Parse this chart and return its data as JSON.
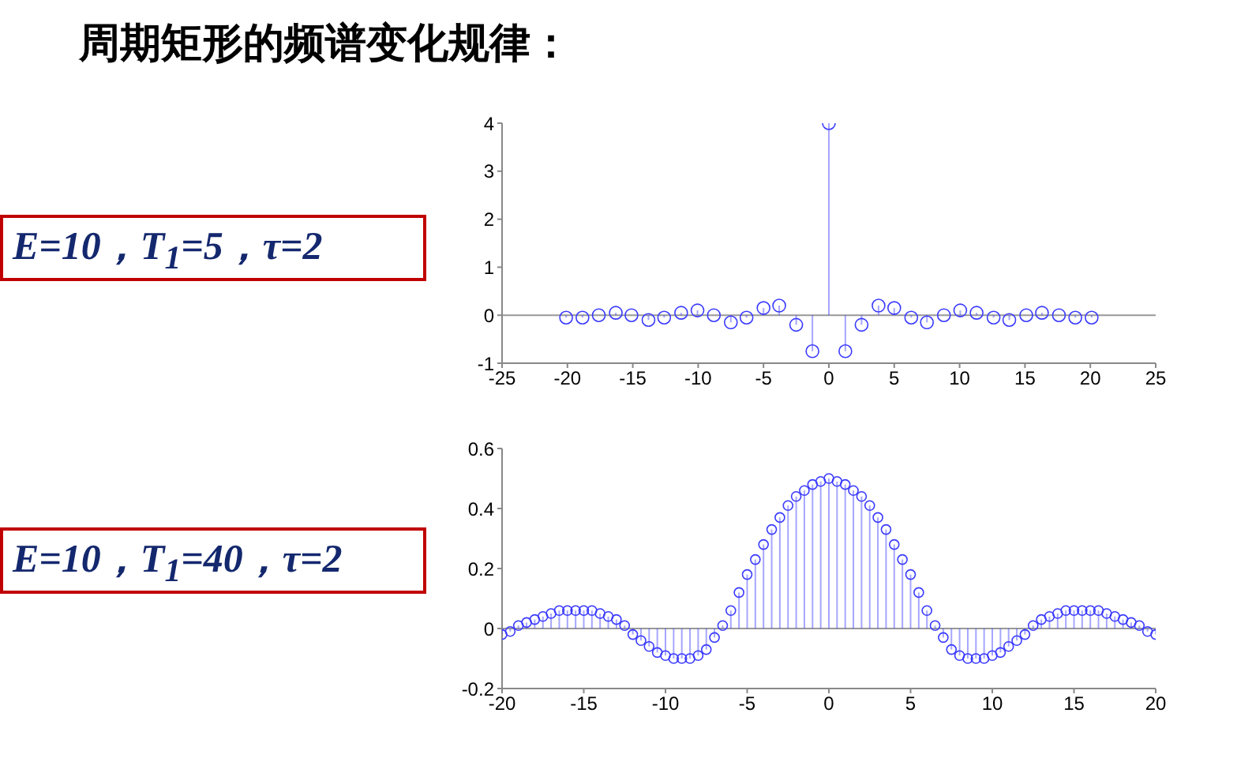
{
  "chart_data": [
    {
      "type": "lollipop",
      "title": "周期矩形的频谱变化规律：",
      "annotations": [
        "E=10，T$_{1}$=5，τ=2"
      ],
      "color": "#3a3aff",
      "marker": "circle",
      "ref_lines": [
        {
          "axis": "y",
          "value": 0,
          "color": "#999999"
        }
      ],
      "x": [
        -20.1,
        -18.85,
        -17.6,
        -16.3,
        -15.1,
        -13.8,
        -12.6,
        -11.3,
        -10.05,
        -8.8,
        -7.5,
        -6.3,
        -5.0,
        -3.8,
        -2.5,
        -1.26,
        0,
        1.26,
        2.5,
        3.8,
        5.0,
        6.3,
        7.5,
        8.8,
        10.05,
        11.3,
        12.6,
        13.8,
        15.1,
        16.3,
        17.6,
        18.85,
        20.1
      ],
      "values": [
        -0.05,
        -0.05,
        0,
        0.05,
        0,
        -0.1,
        -0.05,
        0.05,
        0.1,
        0,
        -0.15,
        -0.05,
        0.15,
        0.2,
        -0.2,
        -0.75,
        4,
        -0.75,
        -0.2,
        0.2,
        0.15,
        -0.05,
        -0.15,
        0,
        0.1,
        0.05,
        -0.05,
        -0.1,
        0,
        0.05,
        0,
        -0.05,
        -0.05
      ],
      "xlim": [
        -25,
        25
      ],
      "xticks": [
        -25,
        -20,
        -15,
        -10,
        -5,
        0,
        5,
        10,
        15,
        20,
        25
      ],
      "ylim": [
        -1,
        4
      ],
      "yticks": [
        -1,
        0,
        1,
        2,
        3,
        4
      ]
    },
    {
      "type": "lollipop",
      "annotations": [
        "E=10，T$_{1}$=40，τ=2"
      ],
      "color": "#3a3aff",
      "marker": "circle",
      "ref_lines": [
        {
          "axis": "y",
          "value": 0,
          "color": "#999999"
        }
      ],
      "x": [
        -20,
        -19.5,
        -19,
        -18.5,
        -18,
        -17.5,
        -17,
        -16.5,
        -16,
        -15.5,
        -15,
        -14.5,
        -14,
        -13.5,
        -13,
        -12.5,
        -12,
        -11.5,
        -11,
        -10.5,
        -10,
        -9.5,
        -9,
        -8.5,
        -8,
        -7.5,
        -7,
        -6.5,
        -6,
        -5.5,
        -5,
        -4.5,
        -4,
        -3.5,
        -3,
        -2.5,
        -2,
        -1.5,
        -1,
        -0.5,
        0,
        0.5,
        1,
        1.5,
        2,
        2.5,
        3,
        3.5,
        4,
        4.5,
        5,
        5.5,
        6,
        6.5,
        7,
        7.5,
        8,
        8.5,
        9,
        9.5,
        10,
        10.5,
        11,
        11.5,
        12,
        12.5,
        13,
        13.5,
        14,
        14.5,
        15,
        15.5,
        16,
        16.5,
        17,
        17.5,
        18,
        18.5,
        19,
        19.5,
        20
      ],
      "values": [
        -0.02,
        -0.01,
        0.01,
        0.02,
        0.03,
        0.04,
        0.05,
        0.06,
        0.06,
        0.06,
        0.06,
        0.06,
        0.05,
        0.04,
        0.03,
        0.01,
        -0.02,
        -0.04,
        -0.06,
        -0.08,
        -0.09,
        -0.1,
        -0.1,
        -0.1,
        -0.09,
        -0.07,
        -0.03,
        0.01,
        0.06,
        0.12,
        0.18,
        0.23,
        0.28,
        0.33,
        0.37,
        0.41,
        0.44,
        0.46,
        0.48,
        0.49,
        0.5,
        0.49,
        0.48,
        0.46,
        0.44,
        0.41,
        0.37,
        0.33,
        0.28,
        0.23,
        0.18,
        0.12,
        0.06,
        0.01,
        -0.03,
        -0.07,
        -0.09,
        -0.1,
        -0.1,
        -0.1,
        -0.09,
        -0.08,
        -0.06,
        -0.04,
        -0.02,
        0.01,
        0.03,
        0.04,
        0.05,
        0.06,
        0.06,
        0.06,
        0.06,
        0.06,
        0.05,
        0.04,
        0.03,
        0.02,
        0.01,
        -0.01,
        -0.02
      ],
      "xlim": [
        -20,
        20
      ],
      "xticks": [
        -20,
        -15,
        -10,
        -5,
        0,
        5,
        10,
        15,
        20
      ],
      "ylim": [
        -0.2,
        0.6
      ],
      "yticks": [
        -0.2,
        0,
        0.2,
        0.4,
        0.6
      ]
    }
  ]
}
